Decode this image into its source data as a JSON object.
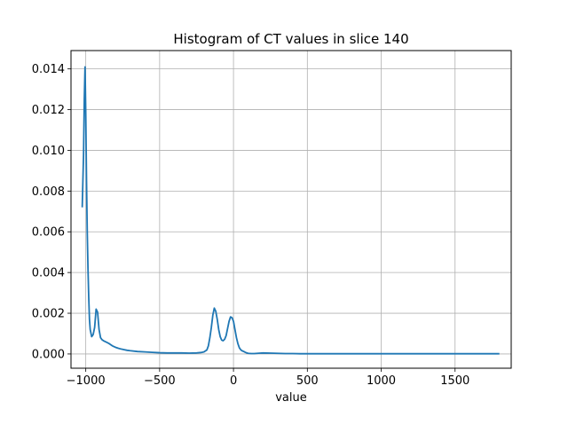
{
  "chart_data": {
    "type": "line",
    "title": "Histogram of CT values in slice 140",
    "xlabel": "value",
    "ylabel": "",
    "xlim": [
      -1100,
      1880
    ],
    "ylim": [
      -0.0007,
      0.0149
    ],
    "grid": true,
    "line_color": "#1f77b4",
    "xticks": [
      {
        "value": -1000,
        "label": "−1000"
      },
      {
        "value": -500,
        "label": "−500"
      },
      {
        "value": 0,
        "label": "0"
      },
      {
        "value": 500,
        "label": "500"
      },
      {
        "value": 1000,
        "label": "1000"
      },
      {
        "value": 1500,
        "label": "1500"
      }
    ],
    "yticks": [
      {
        "value": 0.0,
        "label": "0.000"
      },
      {
        "value": 0.002,
        "label": "0.002"
      },
      {
        "value": 0.004,
        "label": "0.004"
      },
      {
        "value": 0.006,
        "label": "0.006"
      },
      {
        "value": 0.008,
        "label": "0.008"
      },
      {
        "value": 0.01,
        "label": "0.010"
      },
      {
        "value": 0.012,
        "label": "0.012"
      },
      {
        "value": 0.014,
        "label": "0.014"
      }
    ],
    "series": [
      {
        "x": [
          -1024,
          -1015,
          -1010,
          -1005,
          -1000,
          -995,
          -990,
          -985,
          -980,
          -975,
          -970,
          -960,
          -950,
          -940,
          -930,
          -920,
          -910,
          -900,
          -890,
          -880,
          -860,
          -840,
          -820,
          -800,
          -780,
          -760,
          -740,
          -720,
          -700,
          -650,
          -600,
          -550,
          -500,
          -450,
          -400,
          -350,
          -300,
          -250,
          -220,
          -200,
          -180,
          -170,
          -160,
          -150,
          -140,
          -130,
          -120,
          -110,
          -100,
          -90,
          -80,
          -70,
          -60,
          -50,
          -40,
          -30,
          -20,
          -10,
          0,
          10,
          20,
          30,
          40,
          50,
          60,
          70,
          80,
          90,
          100,
          120,
          140,
          160,
          180,
          200,
          250,
          300,
          350,
          400,
          450,
          500,
          550,
          600,
          700,
          800,
          900,
          1000,
          1100,
          1200,
          1300,
          1400,
          1500,
          1600,
          1700,
          1800
        ],
        "y": [
          0.0072,
          0.0098,
          0.0125,
          0.0141,
          0.0118,
          0.0085,
          0.006,
          0.0042,
          0.0028,
          0.0017,
          0.0012,
          0.00085,
          0.00095,
          0.0013,
          0.0022,
          0.00205,
          0.0012,
          0.0008,
          0.0007,
          0.00065,
          0.00058,
          0.0005,
          0.0004,
          0.00033,
          0.00028,
          0.00024,
          0.00021,
          0.00018,
          0.00016,
          0.00012,
          0.0001,
          8e-05,
          6e-05,
          5e-05,
          5e-05,
          5e-05,
          4e-05,
          5e-05,
          7e-05,
          0.0001,
          0.0002,
          0.0004,
          0.0008,
          0.0013,
          0.0019,
          0.00225,
          0.0021,
          0.0017,
          0.0012,
          0.00085,
          0.00068,
          0.00065,
          0.00072,
          0.0009,
          0.00125,
          0.0016,
          0.00182,
          0.00178,
          0.0016,
          0.0012,
          0.0008,
          0.0005,
          0.0003,
          0.0002,
          0.00015,
          0.00012,
          8e-05,
          5e-05,
          3e-05,
          2e-05,
          2e-05,
          3e-05,
          4e-05,
          5e-05,
          4e-05,
          3e-05,
          2e-05,
          2e-05,
          1e-05,
          1e-05,
          1e-05,
          1e-05,
          1e-05,
          1e-05,
          1e-05,
          1e-05,
          1e-05,
          1e-05,
          1e-05,
          1e-05,
          1e-05,
          1e-05,
          1e-05,
          1e-05
        ]
      }
    ]
  }
}
